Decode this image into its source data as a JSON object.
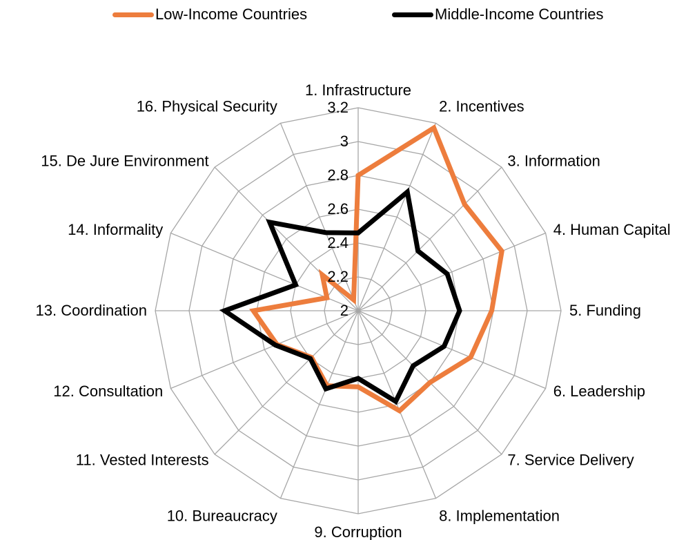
{
  "chart_data": {
    "type": "radar",
    "categories": [
      "1. Infrastructure",
      "2. Incentives",
      "3. Information",
      "4. Human Capital",
      "5. Funding",
      "6. Leadership",
      "7. Service Delivery",
      "8. Implementation",
      "9. Corruption",
      "10. Bureaucracy",
      "11. Vested Interests",
      "12. Consultation",
      "13. Coordination",
      "14. Informality",
      "15. De Jure Environment",
      "16. Physical Security"
    ],
    "series": [
      {
        "name": "Low-Income Countries",
        "color": "#ed7d3d",
        "values": [
          2.8,
          3.17,
          2.89,
          2.92,
          2.79,
          2.72,
          2.6,
          2.64,
          2.45,
          2.48,
          2.39,
          2.52,
          2.62,
          2.2,
          2.3,
          2.07
        ]
      },
      {
        "name": "Middle-Income Countries",
        "color": "#000000",
        "values": [
          2.46,
          2.76,
          2.5,
          2.57,
          2.6,
          2.55,
          2.46,
          2.58,
          2.4,
          2.5,
          2.4,
          2.53,
          2.79,
          2.4,
          2.74,
          2.5
        ]
      }
    ],
    "rlim": [
      2,
      3.2
    ],
    "tick_labels": [
      "2",
      "2.2",
      "2.4",
      "2.6",
      "2.8",
      "3",
      "3.2"
    ],
    "grid": true,
    "legend_position": "top"
  }
}
